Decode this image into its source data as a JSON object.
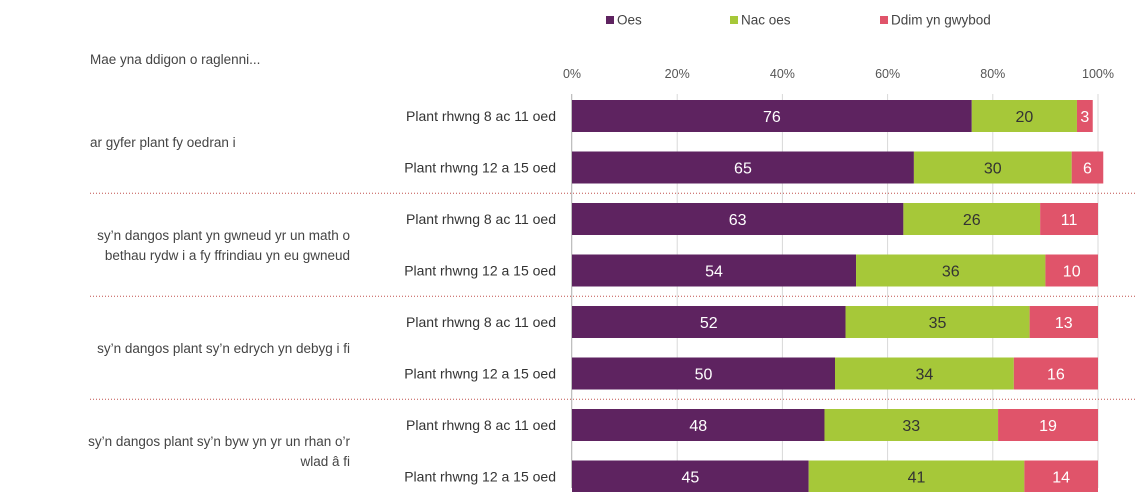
{
  "chart_data": {
    "type": "bar",
    "orientation": "horizontal",
    "stacked": true,
    "percent_stacked": true,
    "title": "Mae yna ddigon o raglenni...",
    "legend": {
      "placement": "top",
      "entries": [
        "Oes",
        "Nac oes",
        "Ddim yn gwybod"
      ]
    },
    "xlim": [
      0,
      100
    ],
    "x_ticks": [
      "0%",
      "20%",
      "40%",
      "60%",
      "80%",
      "100%"
    ],
    "grid": true,
    "groups": [
      {
        "label": "ar gyfer plant fy oedran i",
        "bars": [
          {
            "label": "Plant rhwng 8 ac 11 oed",
            "values": [
              76,
              20,
              3
            ]
          },
          {
            "label": "Plant rhwng 12 a 15 oed",
            "values": [
              65,
              30,
              6
            ]
          }
        ]
      },
      {
        "label": "sy'n dangos plant yn gwneud yr un math o bethau rydw i a fy ffrindiau yn eu gwneud",
        "label_lines": [
          "sy’n dangos plant yn gwneud yr un math o",
          "bethau rydw i a fy ffrindiau yn eu gwneud"
        ],
        "bars": [
          {
            "label": "Plant rhwng 8 ac 11 oed",
            "values": [
              63,
              26,
              11
            ]
          },
          {
            "label": "Plant rhwng 12 a 15 oed",
            "values": [
              54,
              36,
              10
            ]
          }
        ]
      },
      {
        "label": "sy'n dangos plant sy'n edrych yn debyg i fi",
        "label_lines": [
          "sy’n dangos plant sy’n edrych yn debyg i fi"
        ],
        "bars": [
          {
            "label": "Plant rhwng 8 ac 11 oed",
            "values": [
              52,
              35,
              13
            ]
          },
          {
            "label": "Plant rhwng 12 a 15 oed",
            "values": [
              50,
              34,
              16
            ]
          }
        ]
      },
      {
        "label": "sy'n dangos plant sy'n byw yn yr un rhan o'r wlad â fi",
        "label_lines": [
          "sy’n dangos plant sy’n byw yn yr un rhan o’r",
          "wlad â fi"
        ],
        "bars": [
          {
            "label": "Plant rhwng 8 ac 11 oed",
            "values": [
              48,
              33,
              19
            ]
          },
          {
            "label": "Plant rhwng 12 a 15 oed",
            "values": [
              45,
              41,
              14
            ]
          }
        ]
      }
    ],
    "series_colors": [
      "#5e2360",
      "#a6c839",
      "#e0546a"
    ],
    "value_label_colors": [
      "#ffffff",
      "#333333",
      "#ffffff"
    ]
  }
}
